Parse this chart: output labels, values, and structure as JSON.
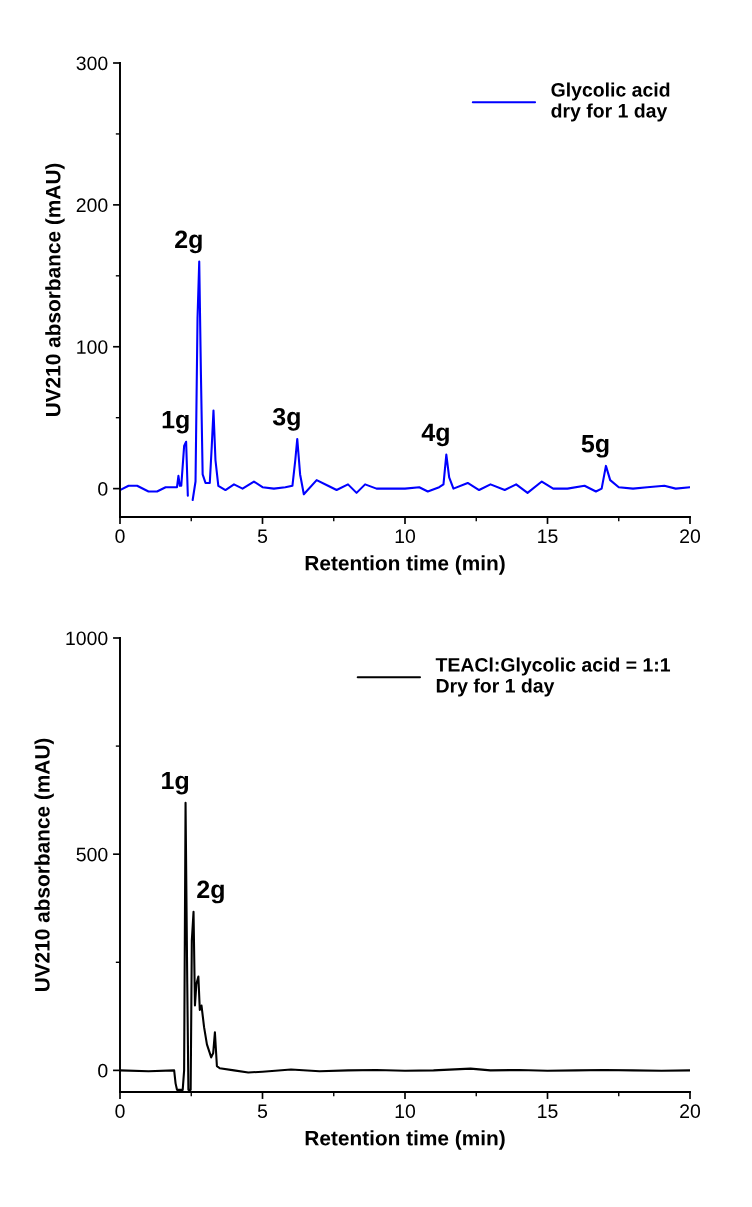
{
  "chart_data": [
    {
      "type": "line",
      "xlabel": "Retention time (min)",
      "ylabel": "UV210 absorbance (mAU)",
      "xlim": [
        0,
        20
      ],
      "xticks": [
        0,
        5,
        10,
        15,
        20
      ],
      "ylim": [
        -20,
        300
      ],
      "yticks": [
        0,
        100,
        200,
        300
      ],
      "legend": "top right",
      "grid": false,
      "marker": "none",
      "line_style": "solid",
      "series": [
        {
          "name": "Glycolic acid\ndry for 1 day",
          "color": "#0000ff",
          "x": [
            0,
            0.3,
            0.6,
            1.0,
            1.3,
            1.6,
            1.9,
            2.0,
            2.05,
            2.1,
            2.15,
            2.25,
            2.32,
            2.38,
            2.42,
            2.5,
            2.55,
            2.65,
            2.72,
            2.78,
            2.84,
            2.9,
            3.0,
            3.15,
            3.22,
            3.28,
            3.35,
            3.45,
            3.7,
            4.0,
            4.3,
            4.7,
            5.0,
            5.4,
            5.8,
            6.05,
            6.15,
            6.22,
            6.32,
            6.45,
            6.9,
            7.3,
            7.6,
            8.0,
            8.3,
            8.6,
            9.0,
            9.5,
            10.0,
            10.5,
            10.8,
            11.2,
            11.35,
            11.45,
            11.55,
            11.7,
            12.2,
            12.6,
            13.0,
            13.5,
            13.9,
            14.3,
            14.8,
            15.2,
            15.7,
            16.3,
            16.7,
            16.9,
            17.05,
            17.2,
            17.5,
            18.0,
            18.5,
            19.1,
            19.5,
            20.0
          ],
          "values": [
            -1,
            2,
            2,
            -2,
            -2,
            1,
            1,
            1,
            9,
            2,
            2,
            30,
            33,
            -5,
            null,
            null,
            -8,
            5,
            120,
            160,
            80,
            10,
            4,
            4,
            30,
            55,
            20,
            2,
            -1,
            3,
            0,
            5,
            1,
            0,
            1,
            2,
            20,
            35,
            10,
            -4,
            6,
            2,
            -1,
            3,
            -3,
            3,
            0,
            0,
            0,
            1,
            -2,
            1,
            3,
            24,
            8,
            0,
            4,
            -1,
            3,
            -1,
            3,
            -3,
            5,
            0,
            0,
            2,
            -2,
            0,
            16,
            6,
            1,
            0,
            1,
            2,
            0,
            1
          ]
        }
      ],
      "annotations": [
        {
          "text": "1g",
          "x": 2.32,
          "y": 33
        },
        {
          "text": "2g",
          "x": 2.78,
          "y": 160
        },
        {
          "text": "3g",
          "x": 6.22,
          "y": 35
        },
        {
          "text": "4g",
          "x": 11.45,
          "y": 24
        },
        {
          "text": "5g",
          "x": 17.05,
          "y": 16
        }
      ]
    },
    {
      "type": "line",
      "xlabel": "Retention time (min)",
      "ylabel": "UV210 absorbance (mAU)",
      "xlim": [
        0,
        20
      ],
      "xticks": [
        0,
        5,
        10,
        15,
        20
      ],
      "ylim": [
        -50,
        1000
      ],
      "yticks": [
        0,
        500,
        1000
      ],
      "legend": "top right",
      "grid": false,
      "marker": "none",
      "line_style": "solid",
      "series": [
        {
          "name": "TEACl:Glycolic acid = 1:1\nDry for 1 day",
          "color": "#000000",
          "x": [
            0,
            1.0,
            1.9,
            1.95,
            2.0,
            2.2,
            2.25,
            2.3,
            2.36,
            2.4,
            2.48,
            2.52,
            2.58,
            2.63,
            2.68,
            2.75,
            2.8,
            2.86,
            2.95,
            3.05,
            3.2,
            3.27,
            3.33,
            3.4,
            3.5,
            4.0,
            4.5,
            5.0,
            6.0,
            7.0,
            8.0,
            9.0,
            10.0,
            11.0,
            12.3,
            13.0,
            14.0,
            15.0,
            16.0,
            17.0,
            18.0,
            19.0,
            20.0
          ],
          "values": [
            0,
            -2,
            0,
            -30,
            -45,
            -45,
            0,
            619,
            200,
            -45,
            -45,
            300,
            367,
            150,
            200,
            217,
            140,
            150,
            100,
            60,
            30,
            40,
            88,
            10,
            5,
            0,
            -5,
            -3,
            2,
            -2,
            0,
            1,
            -1,
            0,
            4,
            0,
            1,
            -1,
            0,
            1,
            0,
            -1,
            0
          ]
        }
      ],
      "annotations": [
        {
          "text": "1g",
          "x": 2.3,
          "y": 619
        },
        {
          "text": "2g",
          "x": 2.58,
          "y": 367
        }
      ]
    }
  ]
}
